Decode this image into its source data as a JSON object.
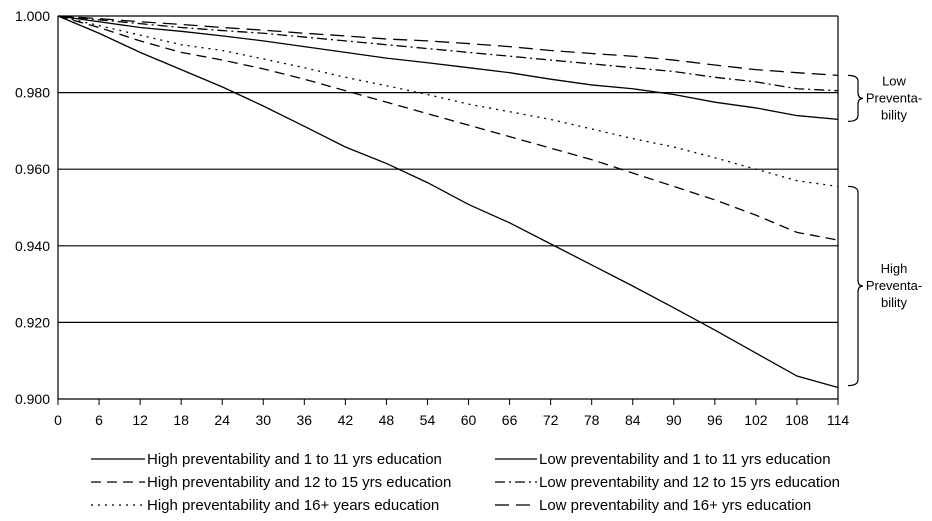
{
  "chart_data": {
    "type": "line",
    "title": "",
    "xlabel": "",
    "ylabel": "",
    "x": [
      0,
      6,
      12,
      18,
      24,
      30,
      36,
      42,
      48,
      54,
      60,
      66,
      72,
      78,
      84,
      90,
      96,
      102,
      108,
      114
    ],
    "xlim": [
      0,
      114
    ],
    "ylim": [
      0.9,
      1.0
    ],
    "y_ticks": [
      "0.900",
      "0.920",
      "0.940",
      "0.960",
      "0.980",
      "1.000"
    ],
    "grid": "horizontal",
    "legend_position": "bottom",
    "series": [
      {
        "name": "High preventability and 1 to 11 yrs education",
        "style": "solid",
        "values": [
          1.0,
          0.9955,
          0.9905,
          0.986,
          0.9815,
          0.9765,
          0.9712,
          0.9658,
          0.9615,
          0.9565,
          0.9508,
          0.946,
          0.9405,
          0.935,
          0.9295,
          0.9238,
          0.918,
          0.912,
          0.906,
          0.903
        ]
      },
      {
        "name": "High preventability and 12 to 15 yrs education",
        "style": "dashed",
        "values": [
          1.0,
          0.997,
          0.9935,
          0.9905,
          0.9885,
          0.9862,
          0.9835,
          0.9805,
          0.9775,
          0.9745,
          0.9715,
          0.9685,
          0.9655,
          0.9625,
          0.959,
          0.9555,
          0.952,
          0.948,
          0.9435,
          0.9415
        ]
      },
      {
        "name": "High preventability and 16+ years education",
        "style": "dotted",
        "values": [
          1.0,
          0.9975,
          0.995,
          0.9925,
          0.991,
          0.9888,
          0.9865,
          0.984,
          0.9818,
          0.9795,
          0.977,
          0.975,
          0.973,
          0.9705,
          0.968,
          0.9658,
          0.963,
          0.96,
          0.957,
          0.9555
        ]
      },
      {
        "name": "Low preventability and 1 to 11 yrs education",
        "style": "solid",
        "values": [
          1.0,
          0.9985,
          0.997,
          0.996,
          0.9948,
          0.9935,
          0.992,
          0.9905,
          0.989,
          0.9878,
          0.9865,
          0.9852,
          0.9835,
          0.982,
          0.981,
          0.9795,
          0.9775,
          0.976,
          0.974,
          0.973
        ]
      },
      {
        "name": "Low preventability and 12 to 15 yrs education",
        "style": "dashdot",
        "values": [
          1.0,
          0.999,
          0.998,
          0.997,
          0.9962,
          0.9955,
          0.9945,
          0.9935,
          0.9925,
          0.9915,
          0.9905,
          0.9895,
          0.9885,
          0.9875,
          0.9865,
          0.9855,
          0.984,
          0.9828,
          0.981,
          0.9805
        ]
      },
      {
        "name": "Low preventability and 16+ yrs education",
        "style": "longdash",
        "values": [
          1.0,
          0.9993,
          0.9985,
          0.9978,
          0.997,
          0.9963,
          0.9955,
          0.9948,
          0.994,
          0.9935,
          0.9928,
          0.992,
          0.991,
          0.9902,
          0.9895,
          0.9885,
          0.9872,
          0.986,
          0.9852,
          0.9845
        ]
      }
    ],
    "annotations": [
      {
        "text_lines": [
          "Low",
          "Preventa-",
          "bility"
        ],
        "y_range": [
          0.9725,
          0.9845
        ]
      },
      {
        "text_lines": [
          "High",
          "Preventa-",
          "bility"
        ],
        "y_range": [
          0.9035,
          0.9555
        ]
      }
    ]
  }
}
